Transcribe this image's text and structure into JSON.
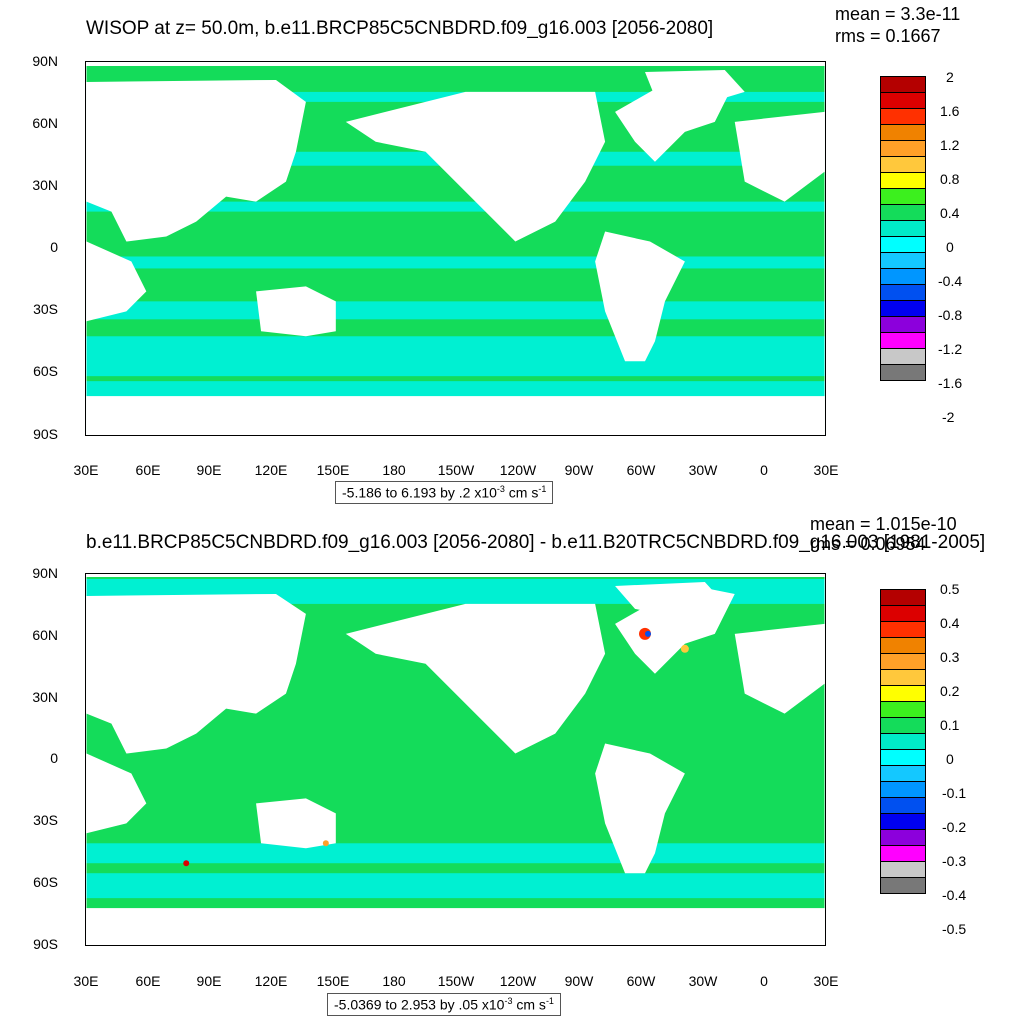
{
  "panels": [
    {
      "title": "WISOP at z=  50.0m, b.e11.BRCP85C5CNBDRD.f09_g16.003 [2056-2080]",
      "mean": "mean = 3.3e-11",
      "rms": "rms = 0.1667",
      "lat_ticks": [
        "90N",
        "60N",
        "30N",
        "0",
        "30S",
        "60S",
        "90S"
      ],
      "lon_ticks": [
        "30E",
        "60E",
        "90E",
        "120E",
        "150E",
        "180",
        "150W",
        "120W",
        "90W",
        "60W",
        "30W",
        "0",
        "30E"
      ],
      "colorbar": [
        "2",
        "1.6",
        "1.2",
        "0.8",
        "0.4",
        "0",
        "-0.4",
        "-0.8",
        "-1.2",
        "-1.6",
        "-2"
      ],
      "range": "-5.186 to 6.193 by .2 x10",
      "range_exp": "-3",
      "range_units": " cm s",
      "range_units_exp": "-1"
    },
    {
      "title": "b.e11.BRCP85C5CNBDRD.f09_g16.003 [2056-2080] - b.e11.B20TRC5CNBDRD.f09_g16.003 [1981-2005]",
      "mean": "mean = 1.015e-10",
      "rms": "rms = 0.06954",
      "lat_ticks": [
        "90N",
        "60N",
        "30N",
        "0",
        "30S",
        "60S",
        "90S"
      ],
      "lon_ticks": [
        "30E",
        "60E",
        "90E",
        "120E",
        "150E",
        "180",
        "150W",
        "120W",
        "90W",
        "60W",
        "30W",
        "0",
        "30E"
      ],
      "colorbar": [
        "0.5",
        "0.4",
        "0.3",
        "0.2",
        "0.1",
        "0",
        "-0.1",
        "-0.2",
        "-0.3",
        "-0.4",
        "-0.5"
      ],
      "range": "-5.0369 to 2.953 by .05 x10",
      "range_exp": "-3",
      "range_units": " cm s",
      "range_units_exp": "-1"
    }
  ],
  "colors": {
    "palette": [
      "#b40000",
      "#dc0000",
      "#ff3000",
      "#f08200",
      "#ffa028",
      "#ffc83c",
      "#ffff00",
      "#3cf01e",
      "#14dc5a",
      "#00ebc8",
      "#00ffff",
      "#14c8ff",
      "#0096ff",
      "#0050f0",
      "#0000f0",
      "#8c00dc",
      "#ff00ff",
      "#c8c8c8",
      "#787878"
    ],
    "ocean_primary": "#14dc5a",
    "ocean_secondary": "#00f0d2"
  }
}
